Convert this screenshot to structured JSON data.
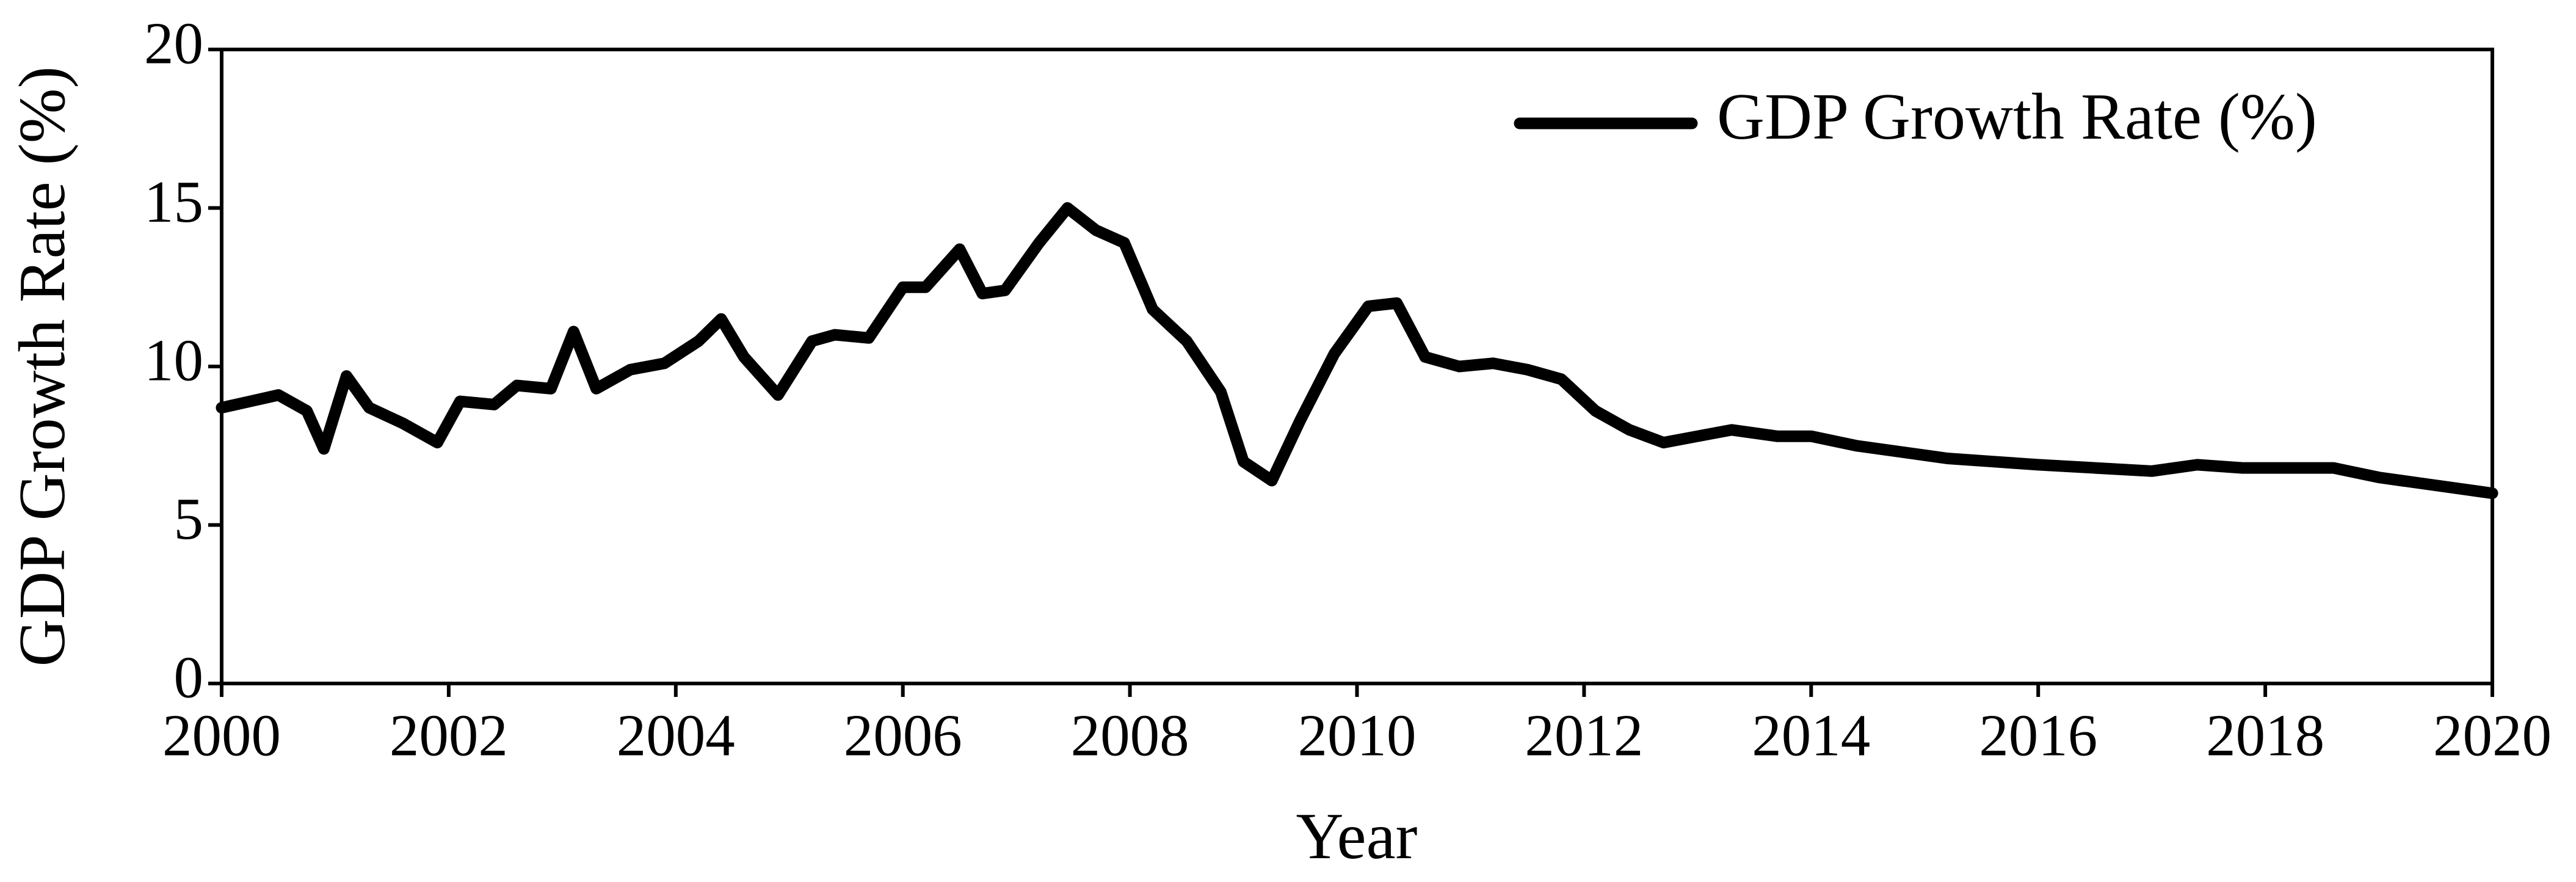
{
  "chart_data": {
    "type": "line",
    "xlabel": "Year",
    "ylabel": "GDP Growth Rate (%)",
    "x": [
      2000.0,
      2000.25,
      2000.5,
      2000.75,
      2000.9,
      2001.1,
      2001.3,
      2001.6,
      2001.9,
      2002.1,
      2002.4,
      2002.6,
      2002.9,
      2003.1,
      2003.3,
      2003.6,
      2003.9,
      2004.2,
      2004.4,
      2004.6,
      2004.9,
      2005.2,
      2005.4,
      2005.7,
      2006.0,
      2006.2,
      2006.5,
      2006.7,
      2006.9,
      2007.2,
      2007.45,
      2007.7,
      2007.95,
      2008.2,
      2008.5,
      2008.8,
      2009.0,
      2009.25,
      2009.5,
      2009.8,
      2010.1,
      2010.35,
      2010.6,
      2010.9,
      2011.2,
      2011.5,
      2011.8,
      2012.1,
      2012.4,
      2012.7,
      2013.0,
      2013.3,
      2013.7,
      2014.0,
      2014.4,
      2014.8,
      2015.2,
      2015.6,
      2016.0,
      2016.5,
      2017.0,
      2017.4,
      2017.8,
      2018.2,
      2018.6,
      2019.0,
      2019.4,
      2019.8,
      2020.0
    ],
    "series": [
      {
        "name": "GDP Growth Rate (%)",
        "color": "#000000",
        "values": [
          8.7,
          8.9,
          9.1,
          8.6,
          7.4,
          9.7,
          8.7,
          8.2,
          7.6,
          8.9,
          8.8,
          9.4,
          9.3,
          11.1,
          9.3,
          9.9,
          10.1,
          10.8,
          11.5,
          10.3,
          9.1,
          10.8,
          11.0,
          10.9,
          12.5,
          12.5,
          13.7,
          12.3,
          12.4,
          13.9,
          15.0,
          14.3,
          13.9,
          11.8,
          10.8,
          9.2,
          7.0,
          6.4,
          8.3,
          10.4,
          11.9,
          12.0,
          10.3,
          10.0,
          10.1,
          9.9,
          9.6,
          8.6,
          8.0,
          7.6,
          7.8,
          8.0,
          7.8,
          7.8,
          7.5,
          7.3,
          7.1,
          7.0,
          6.9,
          6.8,
          6.7,
          6.9,
          6.8,
          6.8,
          6.8,
          6.5,
          6.3,
          6.1,
          6.0
        ]
      }
    ],
    "xlim": [
      2000,
      2020
    ],
    "xticks": [
      2000,
      2002,
      2004,
      2006,
      2008,
      2010,
      2012,
      2014,
      2016,
      2018,
      2020
    ],
    "ylim": [
      0,
      20
    ],
    "yticks": [
      0,
      5,
      10,
      15,
      20
    ],
    "grid": false,
    "legend": "upper right"
  }
}
